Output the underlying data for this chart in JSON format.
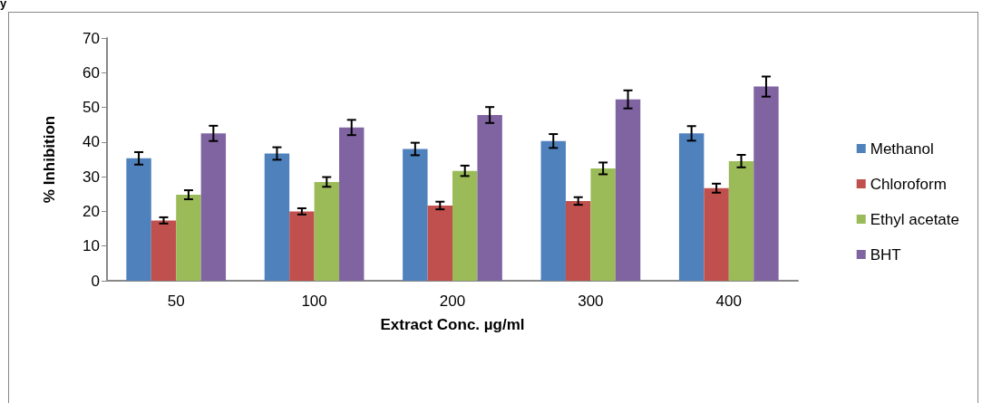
{
  "chart_data": {
    "type": "bar",
    "xlabel": "Extract Conc. µg/ml",
    "ylabel": "% Inhibition",
    "categories": [
      "50",
      "100",
      "200",
      "300",
      "400"
    ],
    "series": [
      {
        "name": "Methanol",
        "color": "#4f81bd",
        "values": [
          35.3,
          36.7,
          38.0,
          40.3,
          42.5
        ],
        "errors": [
          1.8,
          1.8,
          1.8,
          2.0,
          2.1
        ]
      },
      {
        "name": "Chloroform",
        "color": "#c0504d",
        "values": [
          17.4,
          20.0,
          21.7,
          23.0,
          26.7
        ],
        "errors": [
          0.9,
          0.9,
          1.1,
          1.1,
          1.3
        ]
      },
      {
        "name": "Ethyl acetate",
        "color": "#9bbb59",
        "values": [
          24.8,
          28.5,
          31.7,
          32.4,
          34.5
        ],
        "errors": [
          1.3,
          1.4,
          1.5,
          1.7,
          1.8
        ]
      },
      {
        "name": "BHT",
        "color": "#8064a2",
        "values": [
          42.5,
          44.2,
          47.8,
          52.3,
          56.0
        ],
        "errors": [
          2.2,
          2.2,
          2.3,
          2.6,
          2.9
        ]
      }
    ],
    "ylim": [
      0,
      70
    ],
    "yticks": [
      0,
      10,
      20,
      30,
      40,
      50,
      60,
      70
    ],
    "grid": false,
    "legend": "right",
    "annotations": [
      "y"
    ]
  }
}
